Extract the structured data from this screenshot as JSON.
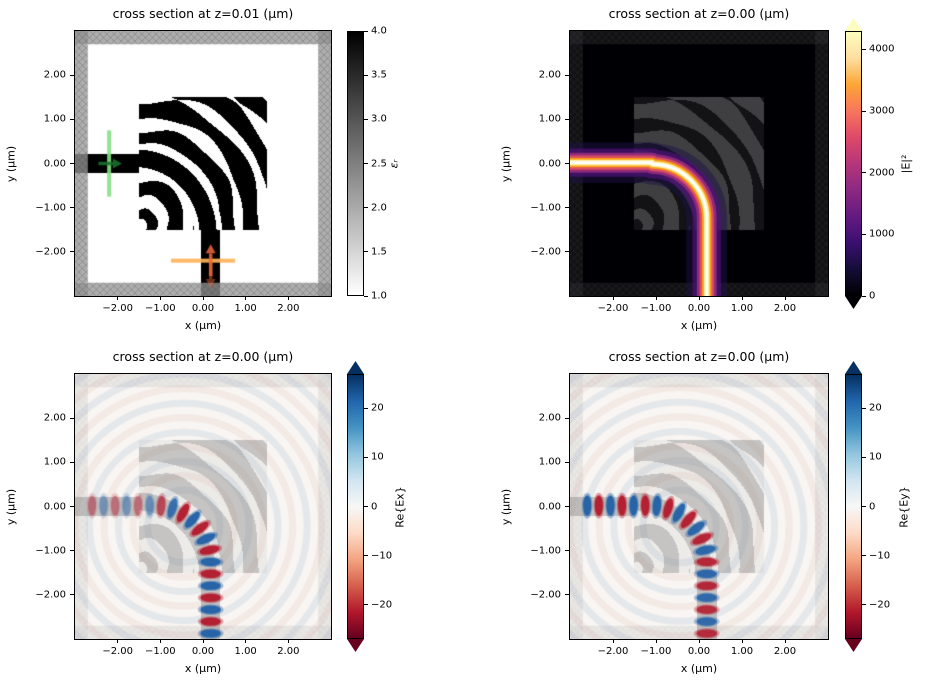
{
  "figure": {
    "background": "#ffffff"
  },
  "palettes": {
    "grays_reversed": [
      "#000000",
      "#555555",
      "#aaaaaa",
      "#ffffff"
    ],
    "magma": [
      "#fcfdbf",
      "#fddea0",
      "#fca636",
      "#f8765c",
      "#de4968",
      "#b5367a",
      "#8c2981",
      "#641a80",
      "#3b0f70",
      "#150e38",
      "#000004"
    ],
    "RdBu_r": [
      "#053061",
      "#2166ac",
      "#4393c3",
      "#92c5de",
      "#d1e5f0",
      "#f7f7f7",
      "#fddbc7",
      "#f4a582",
      "#d6604d",
      "#b2182b",
      "#67001f"
    ]
  },
  "chart_data": [
    {
      "type": "heatmap",
      "title": "cross section at z=0.01 (μm)",
      "xlabel": "x (μm)",
      "ylabel": "y (μm)",
      "xlim": [
        -3,
        3
      ],
      "ylim": [
        -3,
        3
      ],
      "xticks": [
        -2,
        -1,
        0,
        1,
        2
      ],
      "xtick_labels": [
        "−2.00",
        "−1.00",
        "0.00",
        "1.00",
        "2.00"
      ],
      "yticks": [
        2,
        1,
        0,
        -1,
        -2
      ],
      "ytick_labels": [
        "2.00",
        "1.00",
        "0.00",
        "−1.00",
        "−2.00"
      ],
      "colorbar": {
        "label": "εᵣ",
        "vmin": 1,
        "vmax": 4,
        "ticks": [
          4,
          3.5,
          3,
          2.5,
          2,
          1.5,
          1
        ],
        "tick_labels": [
          "4.0",
          "3.5",
          "3.0",
          "2.5",
          "2.0",
          "1.5",
          "1.0"
        ],
        "cmap": "grays_reversed",
        "extend": false
      },
      "scene": {
        "kind": "permittivity",
        "sim_span": [
          -3,
          3
        ],
        "pml_thickness": 0.3,
        "design_region": {
          "x": [
            -1.5,
            1.5
          ],
          "y": [
            -1.5,
            1.5
          ]
        },
        "input_waveguide": {
          "y_center": 0,
          "width": 0.45,
          "from_x": -3,
          "to_x": -1.5
        },
        "output_waveguide": {
          "x_center": 0.18,
          "width": 0.46,
          "from_y": -3,
          "to_y": -1.5
        },
        "bend": {
          "center": [
            -1.09,
            -1.25
          ],
          "radius": 1.27
        },
        "source": {
          "x": -2.2,
          "y_span": [
            -0.75,
            0.75
          ],
          "line_color": "rgba(134,224,132,0.9)",
          "arrow_color": "rgba(24,112,44,0.9)"
        },
        "monitor": {
          "y": -2.2,
          "x_span": [
            -0.75,
            0.75
          ],
          "line_color": "rgba(255,178,88,0.92)",
          "arrow_color": "rgba(240,104,60,0.85)"
        },
        "eps_material": 4,
        "eps_background": 1
      }
    },
    {
      "type": "heatmap",
      "title": "cross section at z=0.00 (μm)",
      "xlabel": "x (μm)",
      "ylabel": "y (μm)",
      "xlim": [
        -3,
        3
      ],
      "ylim": [
        -3,
        3
      ],
      "xticks": [
        -2,
        -1,
        0,
        1,
        2
      ],
      "xtick_labels": [
        "−2.00",
        "−1.00",
        "0.00",
        "1.00",
        "2.00"
      ],
      "yticks": [
        2,
        1,
        0,
        -1,
        -2
      ],
      "ytick_labels": [
        "2.00",
        "1.00",
        "0.00",
        "−1.00",
        "−2.00"
      ],
      "colorbar": {
        "label": "|E|²",
        "vmin": 0,
        "vmax": 4300,
        "ticks": [
          4000,
          3000,
          2000,
          1000,
          0
        ],
        "tick_labels": [
          "4000",
          "3000",
          "2000",
          "1000",
          "0"
        ],
        "cmap": "magma",
        "extend": true
      },
      "scene": {
        "kind": "intensity",
        "background": "#000004",
        "beam_path": {
          "start": [
            -3.1,
            0.02
          ],
          "bend_center": [
            -1.09,
            -1.25
          ],
          "radius": 1.27,
          "out_x": 0.18
        },
        "glow": [
          [
            0.95,
            "#1d1147",
            0.5
          ],
          [
            0.66,
            "#51127c",
            0.68
          ],
          [
            0.46,
            "#a3307e",
            0.8
          ],
          [
            0.33,
            "#e65461",
            0.88
          ],
          [
            0.22,
            "#fca50a",
            0.95
          ],
          [
            0.13,
            "#fcf0a8",
            1
          ],
          [
            0.06,
            "#ffffff",
            1
          ]
        ]
      }
    },
    {
      "type": "heatmap",
      "title": "cross section at z=0.00 (μm)",
      "xlabel": "x (μm)",
      "ylabel": "y (μm)",
      "xlim": [
        -3,
        3
      ],
      "ylim": [
        -3,
        3
      ],
      "xticks": [
        -2,
        -1,
        0,
        1,
        2
      ],
      "xtick_labels": [
        "−2.00",
        "−1.00",
        "0.00",
        "1.00",
        "2.00"
      ],
      "yticks": [
        2,
        1,
        0,
        -1,
        -2
      ],
      "ytick_labels": [
        "2.00",
        "1.00",
        "0.00",
        "−1.00",
        "−2.00"
      ],
      "colorbar": {
        "label": "Re{Ex}",
        "vmin": -27,
        "vmax": 27,
        "ticks": [
          20,
          10,
          0,
          -10,
          -20
        ],
        "tick_labels": [
          "20",
          "10",
          "0",
          "−10",
          "−20"
        ],
        "cmap": "RdBu_r",
        "extend": true
      },
      "scene": {
        "kind": "field",
        "component": "Ex",
        "background": "#f8f5f2",
        "positive_color": "#1f5fa6",
        "negative_color": "#b2182b",
        "half_period": 0.27
      }
    },
    {
      "type": "heatmap",
      "title": "cross section at z=0.00 (μm)",
      "xlabel": "x (μm)",
      "ylabel": "y (μm)",
      "xlim": [
        -3,
        3
      ],
      "ylim": [
        -3,
        3
      ],
      "xticks": [
        -2,
        -1,
        0,
        1,
        2
      ],
      "xtick_labels": [
        "−2.00",
        "−1.00",
        "0.00",
        "1.00",
        "2.00"
      ],
      "yticks": [
        2,
        1,
        0,
        -1,
        -2
      ],
      "ytick_labels": [
        "2.00",
        "1.00",
        "0.00",
        "−1.00",
        "−2.00"
      ],
      "colorbar": {
        "label": "Re{Ey}",
        "vmin": -27,
        "vmax": 27,
        "ticks": [
          20,
          10,
          0,
          -10,
          -20
        ],
        "tick_labels": [
          "20",
          "10",
          "0",
          "−10",
          "−20"
        ],
        "cmap": "RdBu_r",
        "extend": true
      },
      "scene": {
        "kind": "field",
        "component": "Ey",
        "background": "#f8f5f2",
        "positive_color": "#1f5fa6",
        "negative_color": "#b2182b",
        "half_period": 0.27
      }
    }
  ]
}
